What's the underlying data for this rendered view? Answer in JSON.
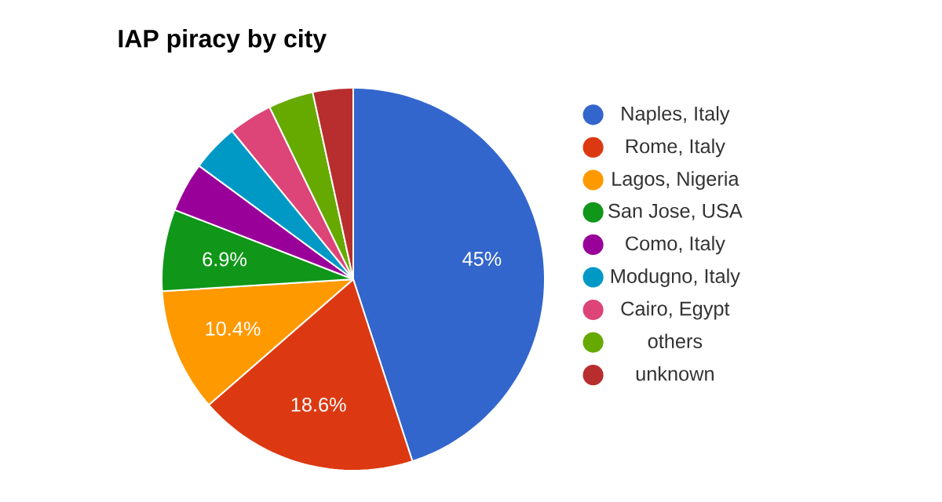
{
  "chart_data": {
    "type": "pie",
    "title": "IAP piracy by city",
    "categories": [
      "Naples, Italy",
      "Rome, Italy",
      "Lagos, Nigeria",
      "San Jose, USA",
      "Como, Italy",
      "Modugno, Italy",
      "Cairo, Egypt",
      "others",
      "unknown"
    ],
    "values": [
      45,
      18.6,
      10.4,
      6.9,
      4.2,
      4.0,
      3.7,
      3.8,
      3.4
    ],
    "value_labels": [
      "45%",
      "18.6%",
      "10.4%",
      "6.9%",
      null,
      null,
      null,
      null,
      null
    ],
    "colors": [
      "#3366cc",
      "#dc3912",
      "#ff9900",
      "#109618",
      "#990099",
      "#0099c6",
      "#dd4477",
      "#66aa00",
      "#b82e2e"
    ],
    "legend": "right"
  }
}
